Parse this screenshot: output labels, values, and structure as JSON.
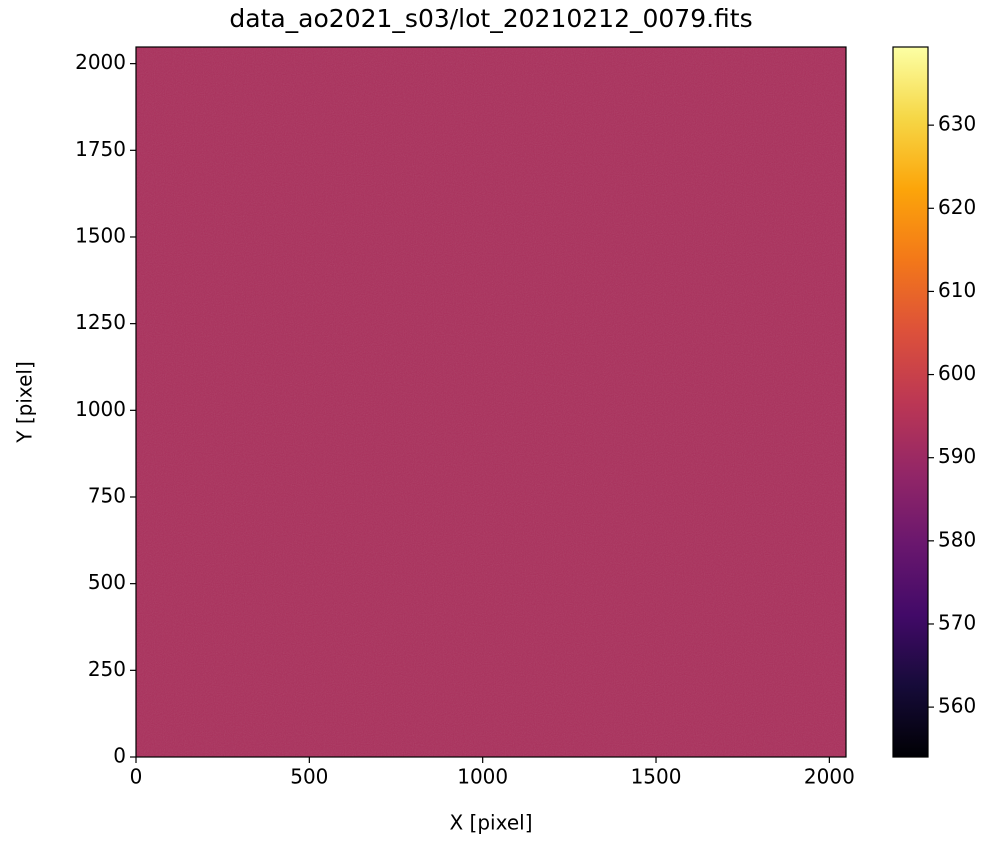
{
  "chart_data": {
    "type": "image",
    "title": "data_ao2021_s03/lot_20210212_0079.fits",
    "xlabel": "X [pixel]",
    "ylabel": "Y [pixel]",
    "xlim": [
      0,
      2048
    ],
    "ylim": [
      0,
      2048
    ],
    "xticks": [
      0,
      500,
      1000,
      1500,
      2000
    ],
    "yticks": [
      0,
      250,
      500,
      750,
      1000,
      1250,
      1500,
      1750,
      2000
    ],
    "value": 593,
    "clim": [
      554,
      639.4
    ],
    "cticks": [
      560,
      570,
      580,
      590,
      600,
      610,
      620,
      630
    ],
    "colormap": [
      "#000004",
      "#160b39",
      "#420a68",
      "#6a176e",
      "#932667",
      "#bc3754",
      "#dd513a",
      "#f37819",
      "#fca50a",
      "#f6d746",
      "#fcffa4"
    ]
  }
}
